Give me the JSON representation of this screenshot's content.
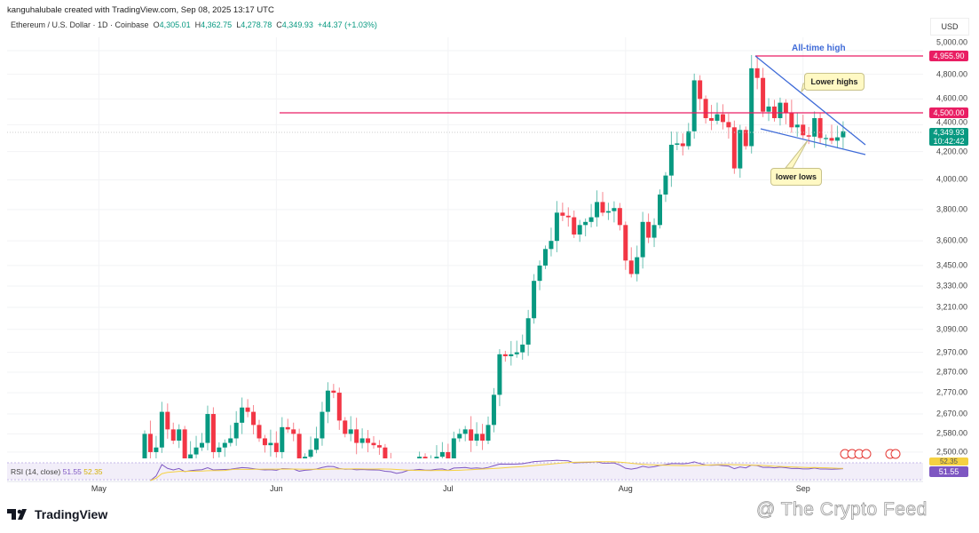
{
  "header": {
    "created": "kanguhalubale created with TradingView.com, Sep 08, 2025 13:17 UTC",
    "symbol": "Ethereum / U.S. Dollar · 1D · Coinbase",
    "o_label": "O",
    "o": "4,305.01",
    "h_label": "H",
    "h": "4,362.75",
    "l_label": "L",
    "l": "4,278.78",
    "c_label": "C",
    "c": "4,349.93",
    "change": "+44.37 (+1.03%)"
  },
  "currency": "USD",
  "price_labels": {
    "ath": "4,955.90",
    "level": "4,500.00",
    "last": "4,349.93",
    "countdown": "10:42:42"
  },
  "annotations": {
    "ath": "All-time high",
    "lower_highs": "Lower highs",
    "lower_lows": "lower lows"
  },
  "rsi": {
    "label": "RSI (14, close)",
    "value": "51.55",
    "ma": "52.35"
  },
  "brand": "TradingView",
  "watermark": "@ The Crypto Feed",
  "colors": {
    "up": "#089981",
    "down": "#f23645",
    "level": "#e91e63",
    "trend": "#3f6bd8"
  },
  "chart_data": {
    "type": "candlestick",
    "title": "Ethereum / U.S. Dollar · 1D · Coinbase",
    "scale": "log",
    "y_ticks": [
      5000,
      4800,
      4600,
      4400,
      4200,
      4000,
      3800,
      3600,
      3450,
      3330,
      3210,
      3090,
      2970,
      2870,
      2770,
      2670,
      2580,
      2500
    ],
    "y_tick_labels": [
      "5,000.00",
      "4,800.00",
      "4,600.00",
      "4,400.00",
      "4,200.00",
      "4,000.00",
      "3,800.00",
      "3,600.00",
      "3,450.00",
      "3,330.00",
      "3,210.00",
      "3,090.00",
      "2,970.00",
      "2,870.00",
      "2,770.00",
      "2,670.00",
      "2,580.00",
      "2,500.00"
    ],
    "x_labels": [
      {
        "label": "May",
        "day": -8
      },
      {
        "label": "Jun",
        "day": 23
      },
      {
        "label": "Jul",
        "day": 53
      },
      {
        "label": "Aug",
        "day": 84
      },
      {
        "label": "Sep",
        "day": 115
      }
    ],
    "start_date": "2025-05-09",
    "first_open": 2350,
    "closes": [
      2580,
      2500,
      2520,
      2680,
      2600,
      2550,
      2600,
      2450,
      2490,
      2520,
      2540,
      2670,
      2500,
      2520,
      2540,
      2560,
      2630,
      2700,
      2680,
      2620,
      2560,
      2530,
      2540,
      2500,
      2610,
      2600,
      2580,
      2420,
      2480,
      2510,
      2560,
      2680,
      2780,
      2770,
      2640,
      2580,
      2600,
      2540,
      2560,
      2540,
      2530,
      2520,
      2440,
      2400,
      2250,
      2300,
      2420,
      2440,
      2480,
      2430,
      2430,
      2480,
      2500,
      2410,
      2560,
      2580,
      2600,
      2550,
      2580,
      2550,
      2620,
      2760,
      2960,
      2950,
      2960,
      2970,
      3010,
      3150,
      3360,
      3450,
      3550,
      3600,
      3780,
      3760,
      3750,
      3640,
      3700,
      3720,
      3750,
      3850,
      3780,
      3790,
      3810,
      3700,
      3480,
      3400,
      3500,
      3720,
      3620,
      3700,
      3900,
      4030,
      4250,
      4260,
      4240,
      4350,
      4750,
      4600,
      4450,
      4430,
      4480,
      4420,
      4380,
      4080,
      4360,
      4240,
      4850,
      4770,
      4500,
      4540,
      4450,
      4570,
      4490,
      4380,
      4400,
      4320,
      4310,
      4450,
      4300,
      4300,
      4280,
      4305,
      4349.93
    ],
    "horizontal_levels": [
      4955.9,
      4500.0
    ],
    "last_price": 4349.93
  }
}
